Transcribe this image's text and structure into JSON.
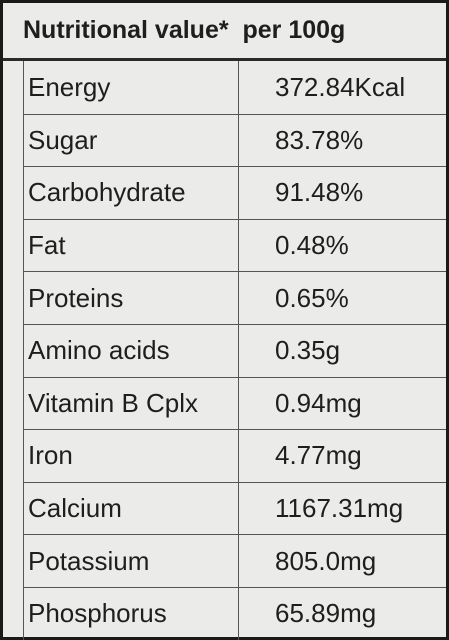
{
  "table": {
    "header": "Nutritional value*  per 100g",
    "rows": [
      [
        "Energy",
        "372.84Kcal"
      ],
      [
        "Sugar",
        "83.78%"
      ],
      [
        "Carbohydrate",
        "91.48%"
      ],
      [
        "Fat",
        "0.48%"
      ],
      [
        "Proteins",
        "0.65%"
      ],
      [
        "Amino acids",
        "0.35g"
      ],
      [
        "Vitamin B Cplx",
        "0.94mg"
      ],
      [
        "Iron",
        "4.77mg"
      ],
      [
        "Calcium",
        "1167.31mg"
      ],
      [
        "Potassium",
        "805.0mg"
      ],
      [
        "Phosphorus",
        "65.89mg"
      ]
    ]
  }
}
